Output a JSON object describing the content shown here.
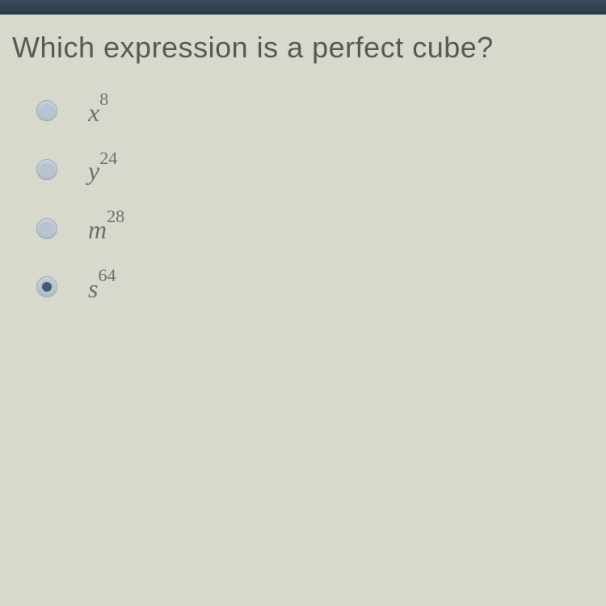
{
  "question": {
    "text": "Which expression is a perfect cube?"
  },
  "options": [
    {
      "base": "x",
      "exponent": "8",
      "selected": false
    },
    {
      "base": "y",
      "exponent": "24",
      "selected": false
    },
    {
      "base": "m",
      "exponent": "28",
      "selected": false
    },
    {
      "base": "s",
      "exponent": "64",
      "selected": true
    }
  ],
  "colors": {
    "background": "#d8d8cc",
    "top_bar": "#2a3a4a",
    "question_text": "#585858",
    "option_text": "#707070",
    "radio_bg": "#b8c4d0",
    "radio_dot": "#4a5a6a"
  }
}
